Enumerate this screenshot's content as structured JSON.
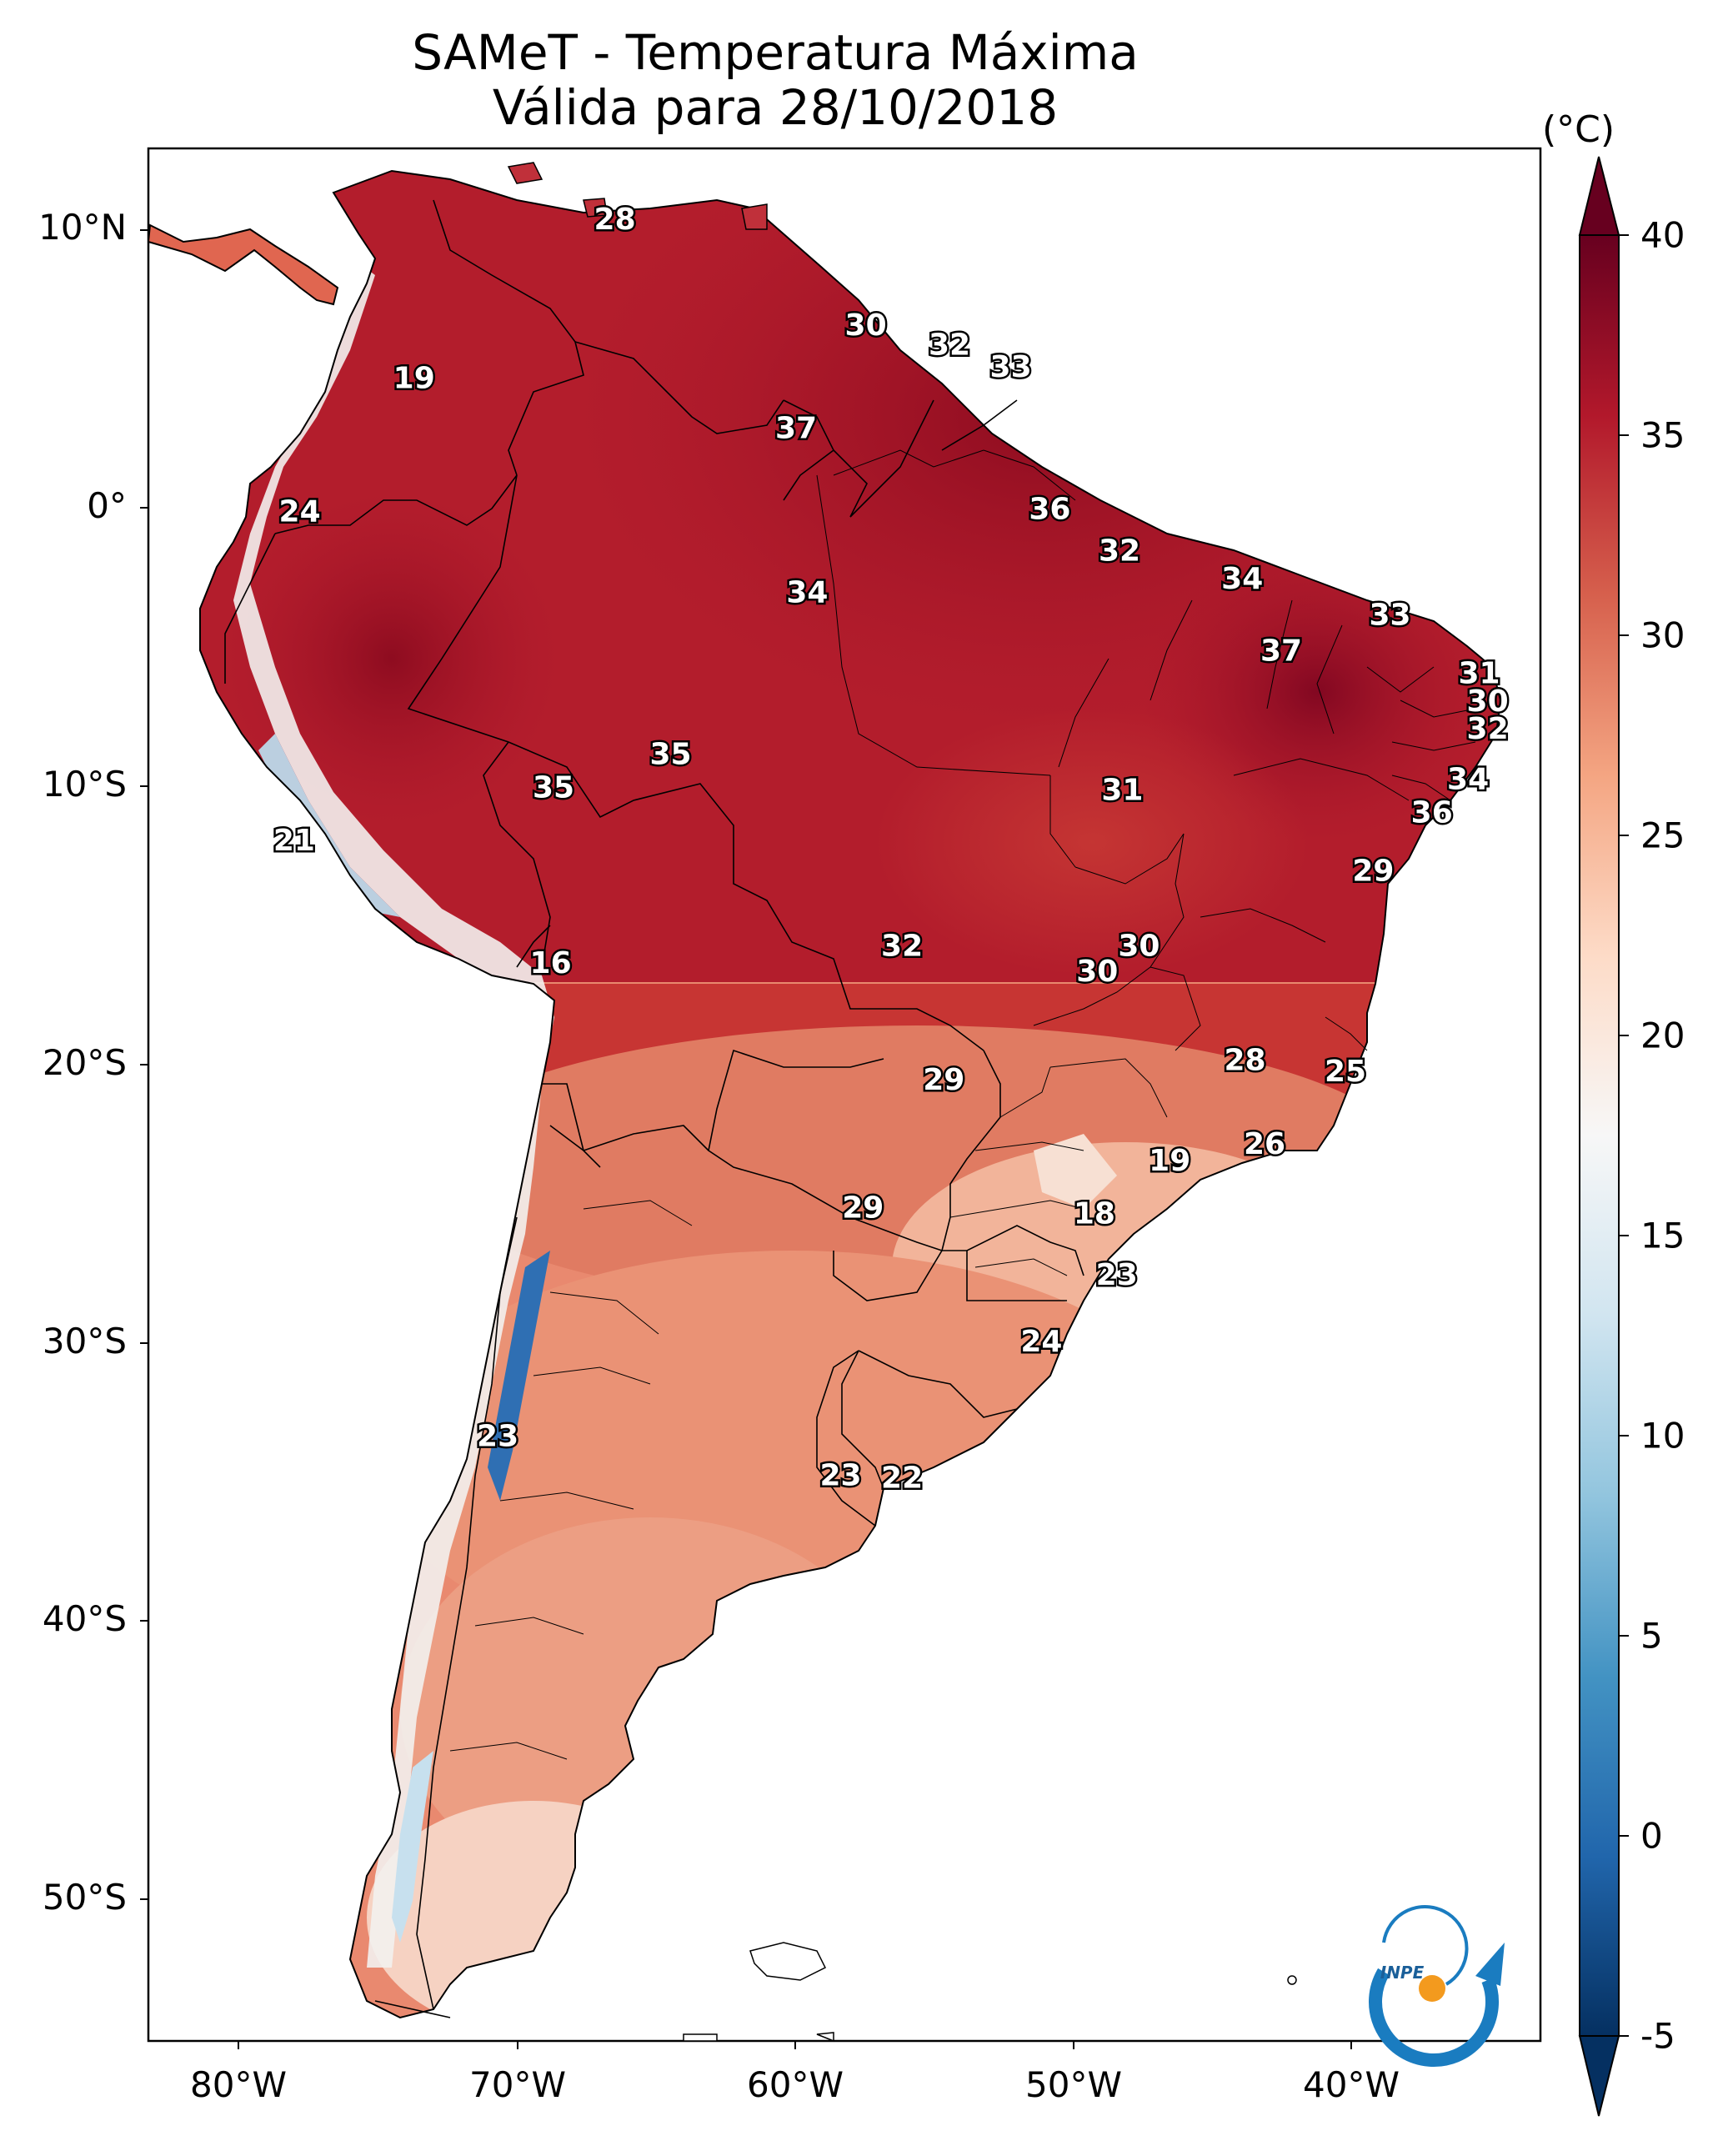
{
  "title": {
    "line1": "SAMeT - Temperatura Máxima",
    "line2": "Válida para 28/10/2018"
  },
  "axes": {
    "latitude_labels": [
      "10°N",
      "0°",
      "10°S",
      "20°S",
      "30°S",
      "40°S",
      "50°S"
    ],
    "longitude_labels": [
      "80°W",
      "70°W",
      "60°W",
      "50°W",
      "40°W"
    ]
  },
  "colorbar": {
    "unit": "(°C)",
    "ticks": [
      "40",
      "35",
      "30",
      "25",
      "20",
      "15",
      "10",
      "5",
      "0",
      "-5"
    ],
    "range": [
      -5,
      40
    ],
    "colormap": "RdBu_r",
    "extend": "both"
  },
  "logo": {
    "text": "INPE",
    "colors": [
      "#1a7cc0",
      "#f39a1e"
    ]
  },
  "map_labels": [
    {
      "value": "28",
      "lat": 10.3,
      "lon": -66.5
    },
    {
      "value": "19",
      "lat": 4.6,
      "lon": -73.7
    },
    {
      "value": "30",
      "lat": 6.5,
      "lon": -57.5
    },
    {
      "value": "32",
      "lat": 5.8,
      "lon": -54.5
    },
    {
      "value": "33",
      "lat": 5.0,
      "lon": -52.3
    },
    {
      "value": "37",
      "lat": 2.8,
      "lon": -60.0
    },
    {
      "value": "24",
      "lat": -0.2,
      "lon": -77.8
    },
    {
      "value": "36",
      "lat": -0.1,
      "lon": -50.9
    },
    {
      "value": "32",
      "lat": -1.6,
      "lon": -48.4
    },
    {
      "value": "34",
      "lat": -3.1,
      "lon": -59.6
    },
    {
      "value": "34",
      "lat": -2.6,
      "lon": -44.0
    },
    {
      "value": "33",
      "lat": -3.9,
      "lon": -38.7
    },
    {
      "value": "37",
      "lat": -5.2,
      "lon": -42.6
    },
    {
      "value": "31",
      "lat": -6.0,
      "lon": -35.5
    },
    {
      "value": "30",
      "lat": -7.0,
      "lon": -35.2
    },
    {
      "value": "32",
      "lat": -8.0,
      "lon": -35.2
    },
    {
      "value": "35",
      "lat": -8.9,
      "lon": -64.5
    },
    {
      "value": "35",
      "lat": -10.1,
      "lon": -68.7
    },
    {
      "value": "31",
      "lat": -10.2,
      "lon": -48.3
    },
    {
      "value": "34",
      "lat": -9.8,
      "lon": -35.9
    },
    {
      "value": "36",
      "lat": -11.0,
      "lon": -37.2
    },
    {
      "value": "21",
      "lat": -12.0,
      "lon": -78.0
    },
    {
      "value": "29",
      "lat": -13.1,
      "lon": -39.3
    },
    {
      "value": "16",
      "lat": -16.4,
      "lon": -68.8
    },
    {
      "value": "32",
      "lat": -15.8,
      "lon": -56.2
    },
    {
      "value": "30",
      "lat": -15.8,
      "lon": -47.7
    },
    {
      "value": "30",
      "lat": -16.7,
      "lon": -49.2
    },
    {
      "value": "28",
      "lat": -19.9,
      "lon": -43.9
    },
    {
      "value": "25",
      "lat": -20.3,
      "lon": -40.3
    },
    {
      "value": "29",
      "lat": -20.6,
      "lon": -54.7
    },
    {
      "value": "26",
      "lat": -22.9,
      "lon": -43.2
    },
    {
      "value": "19",
      "lat": -23.5,
      "lon": -46.6
    },
    {
      "value": "29",
      "lat": -25.2,
      "lon": -57.6
    },
    {
      "value": "18",
      "lat": -25.4,
      "lon": -49.3
    },
    {
      "value": "23",
      "lat": -27.6,
      "lon": -48.5
    },
    {
      "value": "24",
      "lat": -30.0,
      "lon": -51.2
    },
    {
      "value": "23",
      "lat": -33.4,
      "lon": -70.7
    },
    {
      "value": "23",
      "lat": -34.8,
      "lon": -58.4
    },
    {
      "value": "22",
      "lat": -34.9,
      "lon": -56.2
    }
  ]
}
